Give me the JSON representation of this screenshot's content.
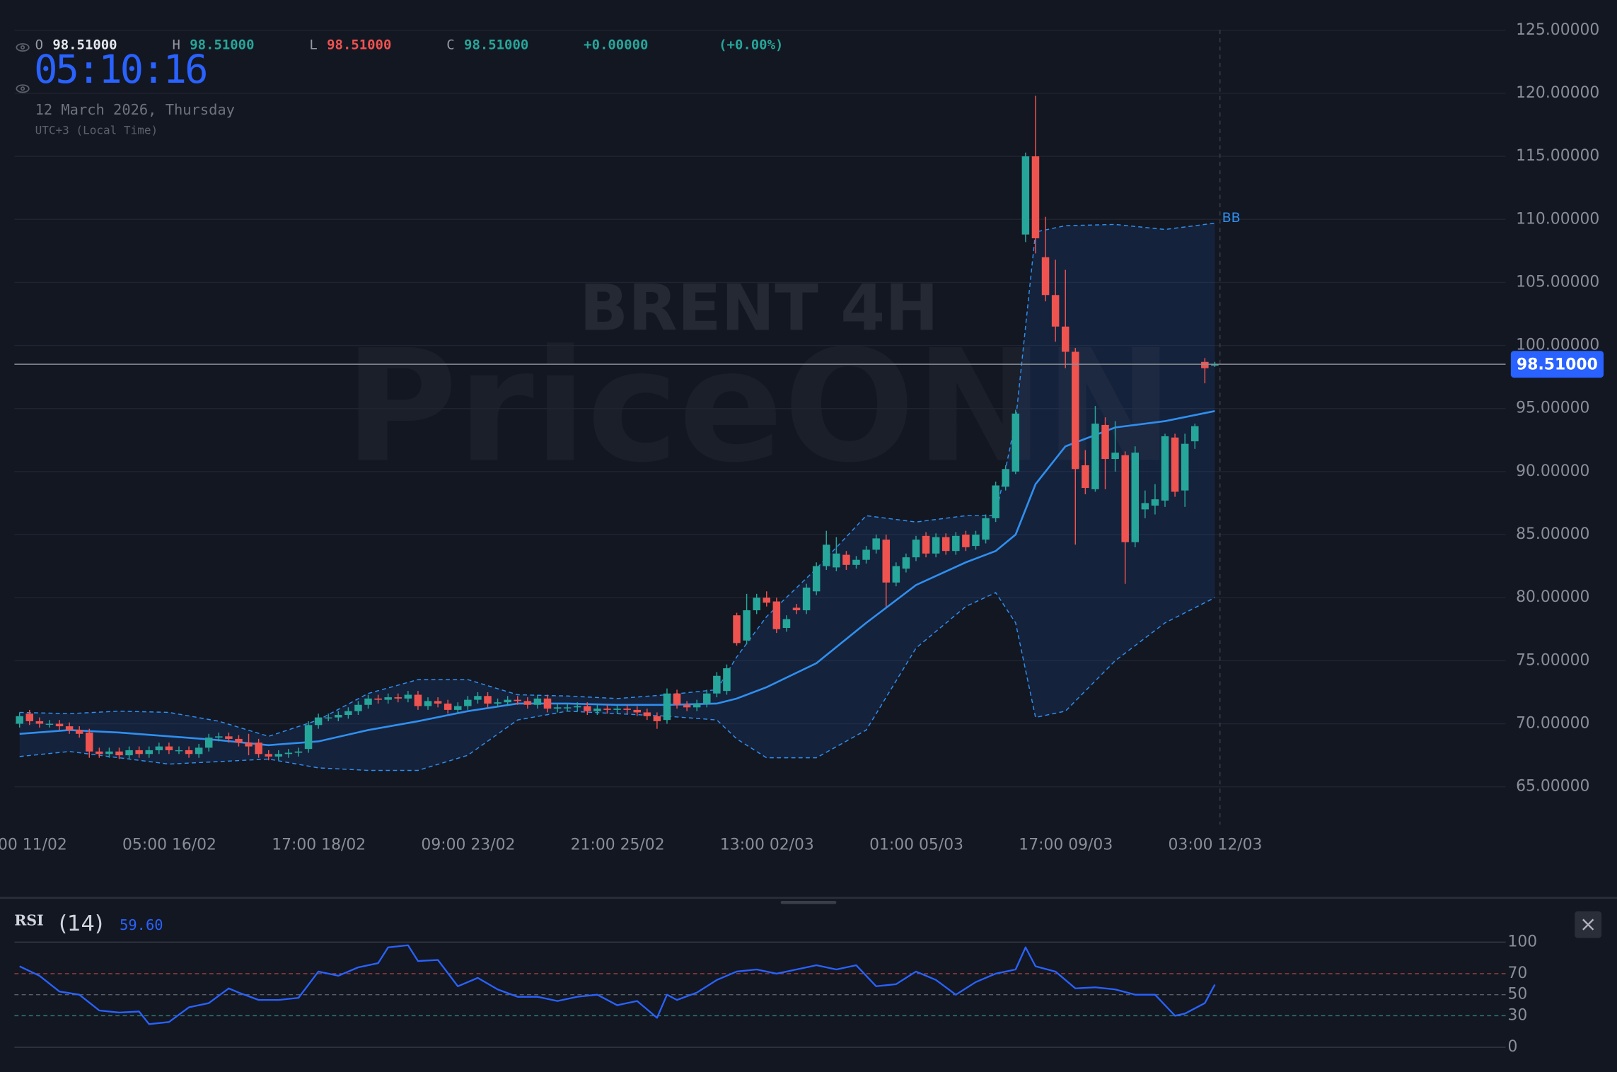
{
  "header": {
    "ohlc": [
      {
        "label": "O",
        "value": "98.51000",
        "color": "#e6e8ee"
      },
      {
        "label": "H",
        "value": "98.51000",
        "color": "#26a69a"
      },
      {
        "label": "L",
        "value": "98.51000",
        "color": "#ef5350"
      },
      {
        "label": "C",
        "value": "98.51000",
        "color": "#26a69a"
      }
    ],
    "change": "+0.00000",
    "change_pct": "(+0.00%)",
    "clock": "05:10:16",
    "date": "12 March 2026, Thursday",
    "timezone": "UTC+3 (Local Time)"
  },
  "watermark": {
    "symbol": "BRENT 4H",
    "brand": "PriceONN"
  },
  "chart_data": [
    {
      "type": "candlestick",
      "categories": [
        "00 11/02",
        null,
        null,
        null,
        null,
        null,
        null,
        null,
        null,
        null,
        null,
        null,
        null,
        null,
        null,
        "05:00 16/02",
        null,
        null,
        null,
        null,
        null,
        null,
        null,
        null,
        null,
        null,
        null,
        null,
        null,
        null,
        "17:00 18/02",
        null,
        null,
        null,
        null,
        null,
        null,
        null,
        null,
        null,
        null,
        null,
        null,
        null,
        null,
        "09:00 23/02",
        null,
        null,
        null,
        null,
        null,
        null,
        null,
        null,
        null,
        null,
        null,
        null,
        null,
        null,
        "21:00 25/02",
        null,
        null,
        null,
        null,
        null,
        null,
        null,
        null,
        null,
        null,
        null,
        null,
        null,
        null,
        "13:00 02/03",
        null,
        null,
        null,
        null,
        null,
        null,
        null,
        null,
        null,
        null,
        null,
        null,
        null,
        null,
        "01:00 05/03",
        null,
        null,
        null,
        null,
        null,
        null,
        null,
        null,
        null,
        null,
        null,
        null,
        null,
        null,
        "17:00 09/03",
        null,
        null,
        null,
        null,
        null,
        null,
        null,
        null,
        null,
        null,
        null,
        null,
        null,
        null,
        "03:00 12/03"
      ],
      "open": [
        70.0,
        70.8,
        70.2,
        70.0,
        70.0,
        69.8,
        69.5,
        69.3,
        67.8,
        67.6,
        67.8,
        67.5,
        67.9,
        67.6,
        67.9,
        68.2,
        67.9,
        67.9,
        67.6,
        68.1,
        68.9,
        69.0,
        68.8,
        68.5,
        68.5,
        67.6,
        67.4,
        67.6,
        67.7,
        68.0,
        69.9,
        70.5,
        70.5,
        70.7,
        71.0,
        71.5,
        72.0,
        71.9,
        72.1,
        72.0,
        72.3,
        71.4,
        71.8,
        71.6,
        71.1,
        71.4,
        71.9,
        72.2,
        71.6,
        71.7,
        71.9,
        71.8,
        71.5,
        72.0,
        71.2,
        71.3,
        71.3,
        71.4,
        71.0,
        71.2,
        71.1,
        71.2,
        71.1,
        70.9,
        70.6,
        70.3,
        72.4,
        71.5,
        71.3,
        71.6,
        72.4,
        72.6,
        78.6,
        76.6,
        79.0,
        80.0,
        79.7,
        77.6,
        79.2,
        79.0,
        80.5,
        82.5,
        82.4,
        83.4,
        82.6,
        83.0,
        83.8,
        84.6,
        81.2,
        82.3,
        83.2,
        84.9,
        83.5,
        84.8,
        83.7,
        85.0,
        84.1,
        84.6,
        86.3,
        88.8,
        90.0,
        108.8,
        115.0,
        107.0,
        104.0,
        101.5,
        99.5,
        90.5,
        88.6,
        93.7,
        91.0,
        91.3,
        84.4,
        87.0,
        87.3,
        87.7,
        92.7,
        88.5,
        92.4,
        98.7,
        98.4
      ],
      "high": [
        70.9,
        71.1,
        70.5,
        70.3,
        70.3,
        70.1,
        69.8,
        69.6,
        68.1,
        68.1,
        68.1,
        68.2,
        68.2,
        68.2,
        68.5,
        68.5,
        68.2,
        68.2,
        68.4,
        69.2,
        69.3,
        69.3,
        69.1,
        69.2,
        68.8,
        67.9,
        67.9,
        68.0,
        68.1,
        70.2,
        70.8,
        70.8,
        71.0,
        71.3,
        71.8,
        72.3,
        72.3,
        72.4,
        72.4,
        72.6,
        72.6,
        72.1,
        72.1,
        71.9,
        71.7,
        72.2,
        72.5,
        72.5,
        72.0,
        72.2,
        72.2,
        72.1,
        72.3,
        72.3,
        71.6,
        71.6,
        71.7,
        71.7,
        71.5,
        71.5,
        71.5,
        71.5,
        71.4,
        71.2,
        70.9,
        72.8,
        72.7,
        71.8,
        71.9,
        72.7,
        74.1,
        74.7,
        78.8,
        80.3,
        80.3,
        80.5,
        80.0,
        78.6,
        79.5,
        81.1,
        82.8,
        85.3,
        84.8,
        83.7,
        83.3,
        84.1,
        85.0,
        85.0,
        82.8,
        83.5,
        84.9,
        85.2,
        85.1,
        85.1,
        85.2,
        85.3,
        85.3,
        86.6,
        89.2,
        90.5,
        94.9,
        115.3,
        119.8,
        110.2,
        106.8,
        106.0,
        99.8,
        91.7,
        95.2,
        94.3,
        94.0,
        91.6,
        92.0,
        88.5,
        89.0,
        93.0,
        93.0,
        93.0,
        93.8,
        99.0,
        98.7
      ],
      "low": [
        69.7,
        69.9,
        69.7,
        69.7,
        69.5,
        69.2,
        68.9,
        67.3,
        67.3,
        67.3,
        67.2,
        67.2,
        67.3,
        67.3,
        67.6,
        67.6,
        67.6,
        67.3,
        67.3,
        67.8,
        68.6,
        68.5,
        68.2,
        67.5,
        67.3,
        67.1,
        67.1,
        67.3,
        67.4,
        67.7,
        69.6,
        70.2,
        70.2,
        70.4,
        70.7,
        71.2,
        71.6,
        71.6,
        71.7,
        71.7,
        71.1,
        71.1,
        71.3,
        70.8,
        70.8,
        71.1,
        71.6,
        71.3,
        71.3,
        71.4,
        71.5,
        71.2,
        71.2,
        70.9,
        70.9,
        71.0,
        71.0,
        70.7,
        70.7,
        70.8,
        70.8,
        70.8,
        70.6,
        70.3,
        69.6,
        70.0,
        71.2,
        71.0,
        71.0,
        71.3,
        72.1,
        72.3,
        76.2,
        76.3,
        78.7,
        79.3,
        77.2,
        77.3,
        78.7,
        78.7,
        80.2,
        82.2,
        82.1,
        82.2,
        82.3,
        82.7,
        83.5,
        79.3,
        80.9,
        82.0,
        82.9,
        83.2,
        83.2,
        83.4,
        83.4,
        83.7,
        83.8,
        84.3,
        86.0,
        88.5,
        89.8,
        108.2,
        107.3,
        103.5,
        100.3,
        98.2,
        84.2,
        88.2,
        88.4,
        88.6,
        90.0,
        81.1,
        84.0,
        86.3,
        86.6,
        87.2,
        88.0,
        87.2,
        91.8,
        97.0,
        98.3
      ],
      "close": [
        70.6,
        70.2,
        70.0,
        70.0,
        69.8,
        69.5,
        69.2,
        67.8,
        67.6,
        67.8,
        67.5,
        67.9,
        67.6,
        67.9,
        68.2,
        67.9,
        67.9,
        67.6,
        68.1,
        68.9,
        69.0,
        68.8,
        68.5,
        68.2,
        67.6,
        67.4,
        67.6,
        67.7,
        67.8,
        69.9,
        70.5,
        70.5,
        70.7,
        71.0,
        71.5,
        72.0,
        71.9,
        72.1,
        72.0,
        72.3,
        71.4,
        71.8,
        71.6,
        71.1,
        71.4,
        71.9,
        72.2,
        71.6,
        71.7,
        71.9,
        71.8,
        71.5,
        72.0,
        71.2,
        71.3,
        71.3,
        71.4,
        71.0,
        71.2,
        71.1,
        71.2,
        71.1,
        70.9,
        70.6,
        70.2,
        72.4,
        71.5,
        71.3,
        71.6,
        72.4,
        73.8,
        74.4,
        76.4,
        79.0,
        80.0,
        79.6,
        77.5,
        78.3,
        79.0,
        80.8,
        82.5,
        84.2,
        83.5,
        82.6,
        83.0,
        83.8,
        84.7,
        81.2,
        82.5,
        83.2,
        84.6,
        83.5,
        84.8,
        83.7,
        84.9,
        84.0,
        85.0,
        86.3,
        88.9,
        90.2,
        94.6,
        115.0,
        108.5,
        104.0,
        101.5,
        99.5,
        90.2,
        88.7,
        93.8,
        91.0,
        91.5,
        84.4,
        91.5,
        87.5,
        87.8,
        92.8,
        88.4,
        92.2,
        93.6,
        98.2,
        98.51
      ],
      "up_color": "#26a69a",
      "down_color": "#ef5350",
      "ylim": [
        62.0,
        127.4
      ],
      "yticks": [
        {
          "value": 65,
          "label": "65.00000"
        },
        {
          "value": 70,
          "label": "70.00000"
        },
        {
          "value": 75,
          "label": "75.00000"
        },
        {
          "value": 80,
          "label": "80.00000"
        },
        {
          "value": 85,
          "label": "85.00000"
        },
        {
          "value": 90,
          "label": "90.00000"
        },
        {
          "value": 95,
          "label": "95.00000"
        },
        {
          "value": 100,
          "label": "100.00000"
        },
        {
          "value": 105,
          "label": "105.00000"
        },
        {
          "value": 110,
          "label": "110.00000"
        },
        {
          "value": 115,
          "label": "115.00000"
        },
        {
          "value": 120,
          "label": "120.00000"
        },
        {
          "value": 125,
          "label": "125.00000"
        }
      ],
      "grid": true,
      "last_price": {
        "value": 98.51,
        "label": "98.51000"
      },
      "bollinger": {
        "name": "BB",
        "color": "#2f8ff0",
        "x": [
          0,
          5,
          10,
          15,
          20,
          25,
          30,
          35,
          40,
          45,
          50,
          55,
          60,
          65,
          70,
          72,
          75,
          80,
          85,
          90,
          95,
          98,
          100,
          102,
          105,
          110,
          115,
          120
        ],
        "upper": [
          70.9,
          70.8,
          71.0,
          70.9,
          70.2,
          69.0,
          70.3,
          72.4,
          73.5,
          73.5,
          72.3,
          72.2,
          72.0,
          72.3,
          72.7,
          75.3,
          78.5,
          82.3,
          86.5,
          86.0,
          86.5,
          86.5,
          94.0,
          109.0,
          109.5,
          109.6,
          109.2,
          109.7
        ],
        "middle": [
          69.2,
          69.5,
          69.3,
          69.0,
          68.7,
          68.3,
          68.6,
          69.5,
          70.2,
          71.0,
          71.6,
          71.6,
          71.5,
          71.5,
          71.6,
          72.0,
          72.9,
          74.8,
          78.0,
          81.0,
          82.8,
          83.7,
          85.0,
          89.0,
          92.0,
          93.5,
          94.0,
          94.8
        ],
        "lower": [
          67.4,
          67.8,
          67.3,
          66.8,
          67.0,
          67.2,
          66.5,
          66.3,
          66.3,
          67.5,
          70.3,
          71.0,
          70.8,
          70.6,
          70.3,
          68.8,
          67.3,
          67.3,
          69.5,
          76.0,
          79.3,
          80.4,
          78.0,
          70.5,
          71.0,
          75.0,
          78.0,
          80.0
        ]
      }
    },
    {
      "type": "line",
      "title": "RSI",
      "subtitle": "(14)",
      "current": {
        "value": 59.6,
        "label": "59.60"
      },
      "color": "#2962ff",
      "x": [
        0,
        2,
        4,
        6,
        8,
        10,
        12,
        13,
        15,
        17,
        19,
        21,
        22,
        24,
        26,
        28,
        30,
        32,
        34,
        36,
        37,
        39,
        40,
        42,
        44,
        46,
        48,
        50,
        52,
        54,
        56,
        58,
        60,
        62,
        64,
        65,
        66,
        68,
        70,
        72,
        74,
        76,
        78,
        80,
        82,
        84,
        86,
        88,
        90,
        92,
        94,
        96,
        98,
        100,
        101,
        102,
        104,
        106,
        108,
        110,
        112,
        114,
        116,
        117,
        119,
        120
      ],
      "values": [
        77,
        68,
        53,
        50,
        35,
        33,
        34,
        22,
        24,
        38,
        42,
        56,
        52,
        45,
        45,
        47,
        72,
        68,
        76,
        80,
        95,
        97,
        82,
        83,
        58,
        66,
        55,
        48,
        48,
        44,
        48,
        50,
        40,
        44,
        28,
        50,
        45,
        52,
        64,
        72,
        74,
        70,
        74,
        78,
        74,
        78,
        58,
        60,
        72,
        64,
        50,
        62,
        70,
        74,
        95,
        77,
        72,
        56,
        57,
        55,
        50,
        50,
        30,
        32,
        42,
        59.6
      ],
      "ylim": [
        -18.6,
        128.4
      ],
      "yticks": [
        0,
        30,
        50,
        70,
        100
      ],
      "tick_line_colors": [
        "#363a45",
        "#2f7d78",
        "#5c6068",
        "#a0413f",
        "#363a45"
      ],
      "tick_line_dashed": [
        false,
        true,
        true,
        true,
        false
      ]
    }
  ]
}
